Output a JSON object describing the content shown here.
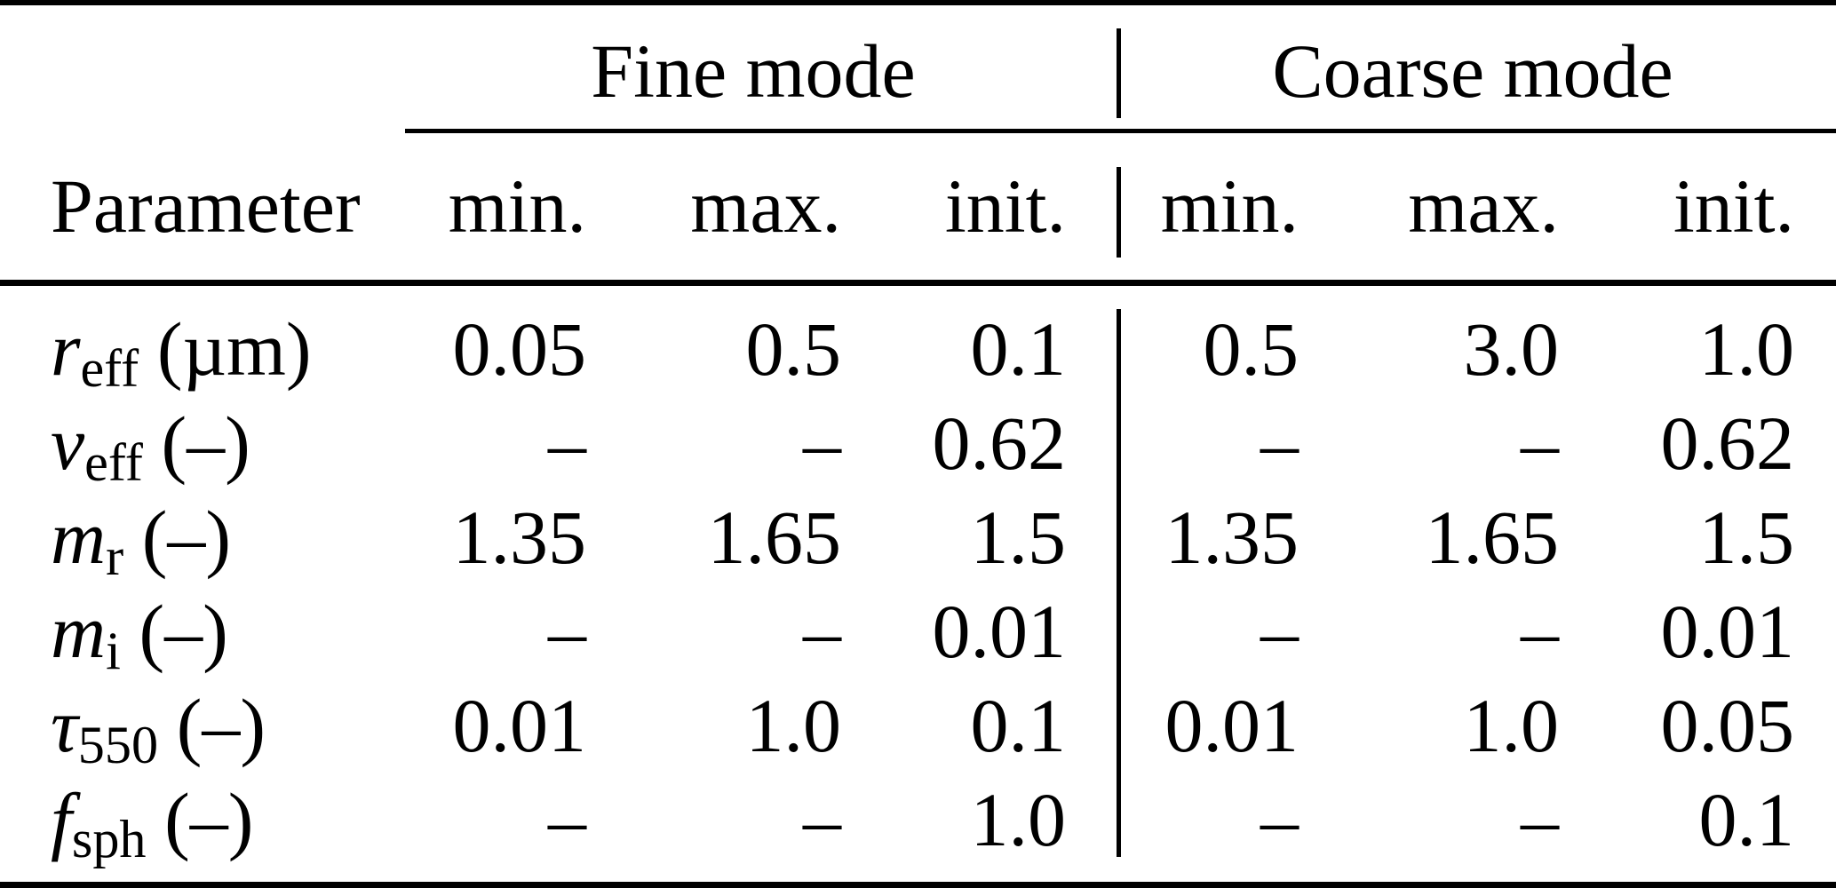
{
  "colors": {
    "background": "#ffffff",
    "text": "#000000",
    "rules": "#000000"
  },
  "table": {
    "columns": {
      "parameter": "Parameter",
      "fine": {
        "label": "Fine mode",
        "sub": [
          "min.",
          "max.",
          "init."
        ]
      },
      "coarse": {
        "label": "Coarse mode",
        "sub": [
          "min.",
          "max.",
          "init."
        ]
      }
    },
    "rows": [
      {
        "param_main": "r",
        "param_sub": "eff",
        "param_unit": "(µm)",
        "fine": [
          "0.05",
          "0.5",
          "0.1"
        ],
        "coarse": [
          "0.5",
          "3.0",
          "1.0"
        ]
      },
      {
        "param_main": "v",
        "param_sub": "eff",
        "param_unit": "(–)",
        "fine": [
          "–",
          "–",
          "0.62"
        ],
        "coarse": [
          "–",
          "–",
          "0.62"
        ]
      },
      {
        "param_main": "m",
        "param_sub": "r",
        "param_unit": "(–)",
        "fine": [
          "1.35",
          "1.65",
          "1.5"
        ],
        "coarse": [
          "1.35",
          "1.65",
          "1.5"
        ]
      },
      {
        "param_main": "m",
        "param_sub": "i",
        "param_unit": "(–)",
        "fine": [
          "–",
          "–",
          "0.01"
        ],
        "coarse": [
          "–",
          "–",
          "0.01"
        ]
      },
      {
        "param_main": "τ",
        "param_sub": "550",
        "param_unit": "(–)",
        "fine": [
          "0.01",
          "1.0",
          "0.1"
        ],
        "coarse": [
          "0.01",
          "1.0",
          "0.05"
        ]
      },
      {
        "param_main": "f",
        "param_sub": "sph",
        "param_unit": "(–)",
        "fine": [
          "–",
          "–",
          "1.0"
        ],
        "coarse": [
          "–",
          "–",
          "0.1"
        ]
      }
    ]
  }
}
